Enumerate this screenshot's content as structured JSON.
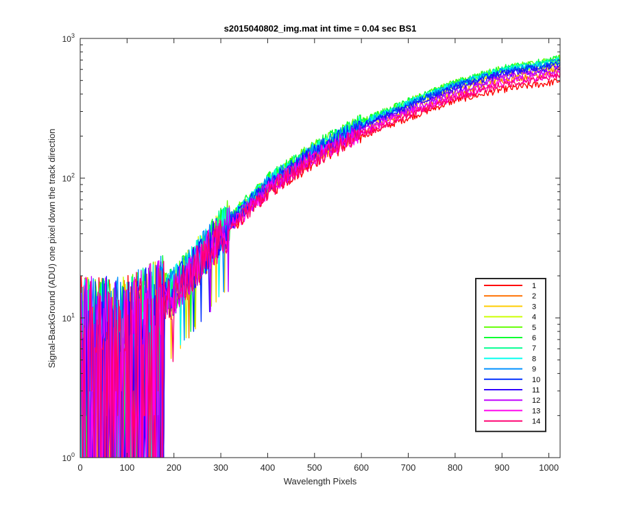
{
  "chart_data": {
    "type": "line",
    "title": "s2015040802_img.mat int time = 0.04 sec   BS1",
    "xlabel": "Wavelength Pixels",
    "ylabel": "Signal-BackGround (ADU) one pixel down the track direction",
    "xlim": [
      0,
      1024
    ],
    "ylim": [
      1,
      1000
    ],
    "yscale": "log",
    "xticks": [
      0,
      100,
      200,
      300,
      400,
      500,
      600,
      700,
      800,
      900,
      1000
    ],
    "xtick_labels": [
      "0",
      "100",
      "200",
      "300",
      "400",
      "500",
      "600",
      "700",
      "800",
      "900",
      "1000"
    ],
    "ytick_values": [
      1,
      10,
      100,
      1000
    ],
    "ytick_labels": [
      {
        "base": "10",
        "exp": "0"
      },
      {
        "base": "10",
        "exp": "1"
      },
      {
        "base": "10",
        "exp": "2"
      },
      {
        "base": "10",
        "exp": "3"
      }
    ],
    "grid": false,
    "legend_position": "lower-right",
    "x_anchor": [
      0,
      100,
      200,
      300,
      400,
      500,
      600,
      700,
      800,
      900,
      1000,
      1024
    ],
    "series": [
      {
        "name": "1",
        "color": "#ff0000",
        "values": [
          10,
          10,
          14,
          38,
          80,
          135,
          200,
          270,
          360,
          430,
          480,
          500
        ]
      },
      {
        "name": "2",
        "color": "#ff7000",
        "values": [
          10,
          10,
          15,
          40,
          85,
          145,
          215,
          300,
          400,
          500,
          570,
          600
        ]
      },
      {
        "name": "3",
        "color": "#ffcc00",
        "values": [
          10,
          10,
          15,
          41,
          88,
          150,
          225,
          315,
          430,
          540,
          610,
          630
        ]
      },
      {
        "name": "4",
        "color": "#ccff00",
        "values": [
          10,
          10,
          16,
          42,
          92,
          158,
          240,
          335,
          460,
          580,
          650,
          680
        ]
      },
      {
        "name": "5",
        "color": "#60ff00",
        "values": [
          10,
          10,
          16,
          43,
          95,
          165,
          255,
          355,
          485,
          610,
          690,
          720
        ]
      },
      {
        "name": "6",
        "color": "#00ff30",
        "values": [
          10,
          10,
          16,
          43,
          95,
          165,
          255,
          355,
          485,
          610,
          690,
          720
        ]
      },
      {
        "name": "7",
        "color": "#00ff90",
        "values": [
          10,
          10,
          16,
          42,
          93,
          162,
          250,
          350,
          475,
          600,
          675,
          705
        ]
      },
      {
        "name": "8",
        "color": "#00ffee",
        "values": [
          10,
          10,
          16,
          42,
          92,
          160,
          245,
          345,
          470,
          590,
          665,
          700
        ]
      },
      {
        "name": "9",
        "color": "#0090ff",
        "values": [
          10,
          10,
          16,
          42,
          91,
          158,
          242,
          340,
          462,
          580,
          655,
          690
        ]
      },
      {
        "name": "10",
        "color": "#0030ff",
        "values": [
          10,
          10,
          15,
          41,
          89,
          155,
          238,
          333,
          455,
          570,
          640,
          670
        ]
      },
      {
        "name": "11",
        "color": "#3000ff",
        "values": [
          10,
          10,
          15,
          40,
          87,
          150,
          230,
          320,
          438,
          550,
          610,
          640
        ]
      },
      {
        "name": "12",
        "color": "#c000ff",
        "values": [
          10,
          10,
          15,
          39,
          84,
          145,
          220,
          305,
          410,
          520,
          580,
          610
        ]
      },
      {
        "name": "13",
        "color": "#ff00ee",
        "values": [
          10,
          10,
          15,
          38,
          82,
          140,
          210,
          290,
          385,
          480,
          540,
          570
        ]
      },
      {
        "name": "14",
        "color": "#ff0070",
        "values": [
          10,
          10,
          14,
          38,
          80,
          138,
          205,
          280,
          375,
          465,
          520,
          550
        ]
      }
    ]
  }
}
